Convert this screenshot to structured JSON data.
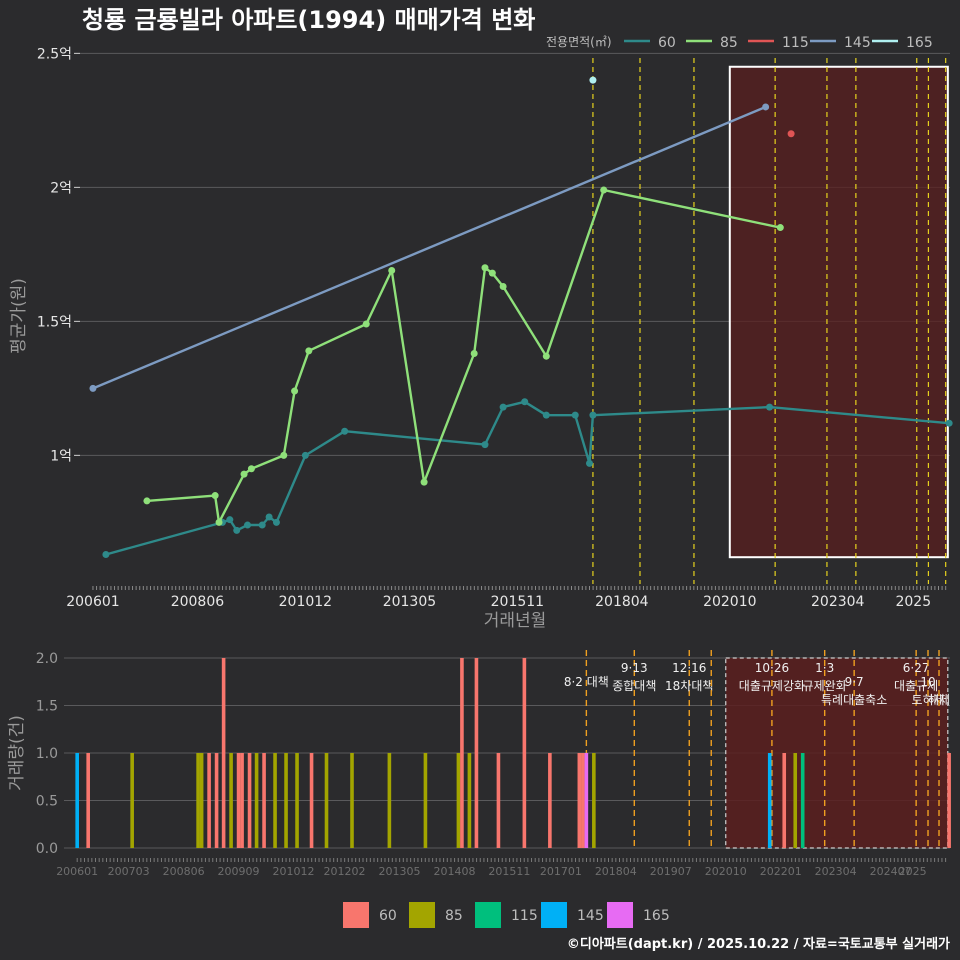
{
  "title": "청룡 금룡빌라 아파트(1994) 매매가격 변화",
  "credit": "©디아파트(dapt.kr) / 2025.10.22 / 자료=국토교통부 실거래가",
  "colors": {
    "bg": "#2b2b2d",
    "grid": "#5a5a5c",
    "s60": "#2e8a8a",
    "s85": "#8fe07a",
    "s115": "#e05555",
    "s145": "#7d9bc2",
    "s165": "#b0f0f0",
    "b60": "#f8766d",
    "b85": "#a3a500",
    "b115": "#00bf7d",
    "b145": "#00b0f6",
    "b165": "#e76bf3",
    "policy": "#e6d21e",
    "policyBottom": "#f0a020",
    "highlight": "#5a1f1f"
  },
  "chart_data": [
    {
      "type": "line",
      "title": "청룡 금룡빌라 아파트(1994) 매매가격 변화",
      "xlabel": "거래년월",
      "ylabel": "평균가(원)",
      "ylim": [
        0.52,
        2.52
      ],
      "xlim": [
        2005.7,
        2025.85
      ],
      "y_ticks": [
        {
          "v": 1.0,
          "label": "1억"
        },
        {
          "v": 1.5,
          "label": "1.5억"
        },
        {
          "v": 2.0,
          "label": "2억"
        },
        {
          "v": 2.5,
          "label": "2.5억"
        }
      ],
      "x_ticks": [
        {
          "v": 2006.0,
          "label": "200601"
        },
        {
          "v": 2008.42,
          "label": "200806"
        },
        {
          "v": 2010.92,
          "label": "201012"
        },
        {
          "v": 2013.33,
          "label": "201305"
        },
        {
          "v": 2015.83,
          "label": "201511"
        },
        {
          "v": 2018.25,
          "label": "201804"
        },
        {
          "v": 2020.75,
          "label": "202010"
        },
        {
          "v": 2023.25,
          "label": "202304"
        },
        {
          "v": 2025.0,
          "label": "2025"
        }
      ],
      "legend_title": "전용면적(㎡)",
      "legend": [
        "60",
        "85",
        "115",
        "145",
        "165"
      ],
      "highlight_range": [
        2020.75,
        2025.8
      ],
      "highlight_y": [
        0.62,
        2.45
      ],
      "policy_lines": [
        2017.58,
        2018.67,
        2019.92,
        2021.8,
        2023.0,
        2023.67,
        2025.08,
        2025.35,
        2025.75
      ],
      "series": [
        {
          "name": "60",
          "x": [
            2006.3,
            2009.0,
            2009.17,
            2009.33,
            2009.58,
            2009.92,
            2010.08,
            2010.25,
            2010.92,
            2011.83,
            2015.08,
            2015.5,
            2016.0,
            2016.5,
            2017.17,
            2017.5,
            2017.58,
            2021.67,
            2025.83
          ],
          "y": [
            0.63,
            0.75,
            0.76,
            0.72,
            0.74,
            0.74,
            0.77,
            0.75,
            1.0,
            1.09,
            1.04,
            1.18,
            1.2,
            1.15,
            1.15,
            0.97,
            1.15,
            1.18,
            1.12
          ]
        },
        {
          "name": "85",
          "x": [
            2007.25,
            2008.83,
            2008.92,
            2009.5,
            2009.67,
            2010.42,
            2010.67,
            2011.0,
            2012.33,
            2012.92,
            2013.67,
            2014.83,
            2015.08,
            2015.25,
            2015.5,
            2016.5,
            2017.83,
            2021.92
          ],
          "y": [
            0.83,
            0.85,
            0.75,
            0.93,
            0.95,
            1.0,
            1.24,
            1.39,
            1.49,
            1.69,
            0.9,
            1.38,
            1.7,
            1.68,
            1.63,
            1.37,
            1.99,
            1.85
          ]
        },
        {
          "name": "115",
          "x": [
            2022.17
          ],
          "y": [
            2.2
          ]
        },
        {
          "name": "145",
          "x": [
            2006.0,
            2021.58
          ],
          "y": [
            1.25,
            2.3
          ]
        },
        {
          "name": "165",
          "x": [
            2017.58
          ],
          "y": [
            2.4
          ]
        }
      ]
    },
    {
      "type": "bar",
      "ylabel": "거래량(건)",
      "ylim": [
        0,
        2.0
      ],
      "xlim": [
        2005.7,
        2025.85
      ],
      "y_ticks": [
        {
          "v": 0.0,
          "label": "0.0"
        },
        {
          "v": 0.5,
          "label": "0.5"
        },
        {
          "v": 1.0,
          "label": "1.0"
        },
        {
          "v": 1.5,
          "label": "1.5"
        },
        {
          "v": 2.0,
          "label": "2.0"
        }
      ],
      "x_ticks": [
        {
          "v": 2006.0,
          "label": "200601"
        },
        {
          "v": 2007.17,
          "label": "200703"
        },
        {
          "v": 2008.42,
          "label": "200806"
        },
        {
          "v": 2009.67,
          "label": "200909"
        },
        {
          "v": 2010.92,
          "label": "201012"
        },
        {
          "v": 2012.08,
          "label": "201202"
        },
        {
          "v": 2013.33,
          "label": "201305"
        },
        {
          "v": 2014.58,
          "label": "201408"
        },
        {
          "v": 2015.83,
          "label": "201511"
        },
        {
          "v": 2017.0,
          "label": "201701"
        },
        {
          "v": 2018.25,
          "label": "201804"
        },
        {
          "v": 2019.5,
          "label": "201907"
        },
        {
          "v": 2020.75,
          "label": "202010"
        },
        {
          "v": 2022.0,
          "label": "202201"
        },
        {
          "v": 2023.25,
          "label": "202304"
        },
        {
          "v": 2024.5,
          "label": "202407"
        },
        {
          "v": 2025.0,
          "label": "2025"
        }
      ],
      "legend": [
        "60",
        "85",
        "115",
        "145",
        "165"
      ],
      "highlight_range": [
        2020.75,
        2025.8
      ],
      "policies": [
        {
          "x": 2017.58,
          "date": "8·2 대책",
          "desc": "",
          "row": 1
        },
        {
          "x": 2018.67,
          "date": "9·13",
          "desc": "종합대책",
          "row": 0
        },
        {
          "x": 2019.92,
          "date": "12·16",
          "desc": "18차대책",
          "row": 0
        },
        {
          "x": 2020.42,
          "date": "",
          "desc": "",
          "row": 0
        },
        {
          "x": 2021.8,
          "date": "10·26",
          "desc": "대출규제강화",
          "row": 0
        },
        {
          "x": 2023.0,
          "date": "1·3",
          "desc": "규제완화",
          "row": 0
        },
        {
          "x": 2023.67,
          "date": "9·7",
          "desc": "특례대출축소",
          "row": 1
        },
        {
          "x": 2025.08,
          "date": "6·27",
          "desc": "대출규제",
          "row": 0
        },
        {
          "x": 2025.35,
          "date": "10",
          "desc": "토허제",
          "row": 1
        },
        {
          "x": 2025.6,
          "date": "",
          "desc": "해제",
          "row": 1
        }
      ],
      "bars": [
        {
          "x": 2006.0,
          "v": 1,
          "s": "145"
        },
        {
          "x": 2006.25,
          "v": 1,
          "s": "60"
        },
        {
          "x": 2007.25,
          "v": 1,
          "s": "85"
        },
        {
          "x": 2008.75,
          "v": 1,
          "s": "85"
        },
        {
          "x": 2008.83,
          "v": 1,
          "s": "85"
        },
        {
          "x": 2009.0,
          "v": 1,
          "s": "60"
        },
        {
          "x": 2009.17,
          "v": 1,
          "s": "60"
        },
        {
          "x": 2009.33,
          "v": 2,
          "s": "60"
        },
        {
          "x": 2009.5,
          "v": 1,
          "s": "85"
        },
        {
          "x": 2009.67,
          "v": 1,
          "s": "60"
        },
        {
          "x": 2009.75,
          "v": 1,
          "s": "60"
        },
        {
          "x": 2009.92,
          "v": 1,
          "s": "60"
        },
        {
          "x": 2010.08,
          "v": 1,
          "s": "85"
        },
        {
          "x": 2010.25,
          "v": 1,
          "s": "60"
        },
        {
          "x": 2010.5,
          "v": 1,
          "s": "85"
        },
        {
          "x": 2010.75,
          "v": 1,
          "s": "85"
        },
        {
          "x": 2011.0,
          "v": 1,
          "s": "85"
        },
        {
          "x": 2011.33,
          "v": 1,
          "s": "60"
        },
        {
          "x": 2011.67,
          "v": 1,
          "s": "85"
        },
        {
          "x": 2012.25,
          "v": 1,
          "s": "85"
        },
        {
          "x": 2013.1,
          "v": 1,
          "s": "85"
        },
        {
          "x": 2013.92,
          "v": 1,
          "s": "85"
        },
        {
          "x": 2014.67,
          "v": 1,
          "s": "85"
        },
        {
          "x": 2014.75,
          "v": 2,
          "s": "60"
        },
        {
          "x": 2014.92,
          "v": 1,
          "s": "85"
        },
        {
          "x": 2015.08,
          "v": 2,
          "s": "60"
        },
        {
          "x": 2015.58,
          "v": 1,
          "s": "60"
        },
        {
          "x": 2016.17,
          "v": 2,
          "s": "60"
        },
        {
          "x": 2016.75,
          "v": 1,
          "s": "60"
        },
        {
          "x": 2017.42,
          "v": 1,
          "s": "60"
        },
        {
          "x": 2017.5,
          "v": 1,
          "s": "60"
        },
        {
          "x": 2017.58,
          "v": 1,
          "s": "165"
        },
        {
          "x": 2017.75,
          "v": 1,
          "s": "85"
        },
        {
          "x": 2021.75,
          "v": 1,
          "s": "145"
        },
        {
          "x": 2022.08,
          "v": 1,
          "s": "60"
        },
        {
          "x": 2022.33,
          "v": 1,
          "s": "85"
        },
        {
          "x": 2022.5,
          "v": 1,
          "s": "115"
        },
        {
          "x": 2025.83,
          "v": 1,
          "s": "60"
        }
      ]
    }
  ]
}
